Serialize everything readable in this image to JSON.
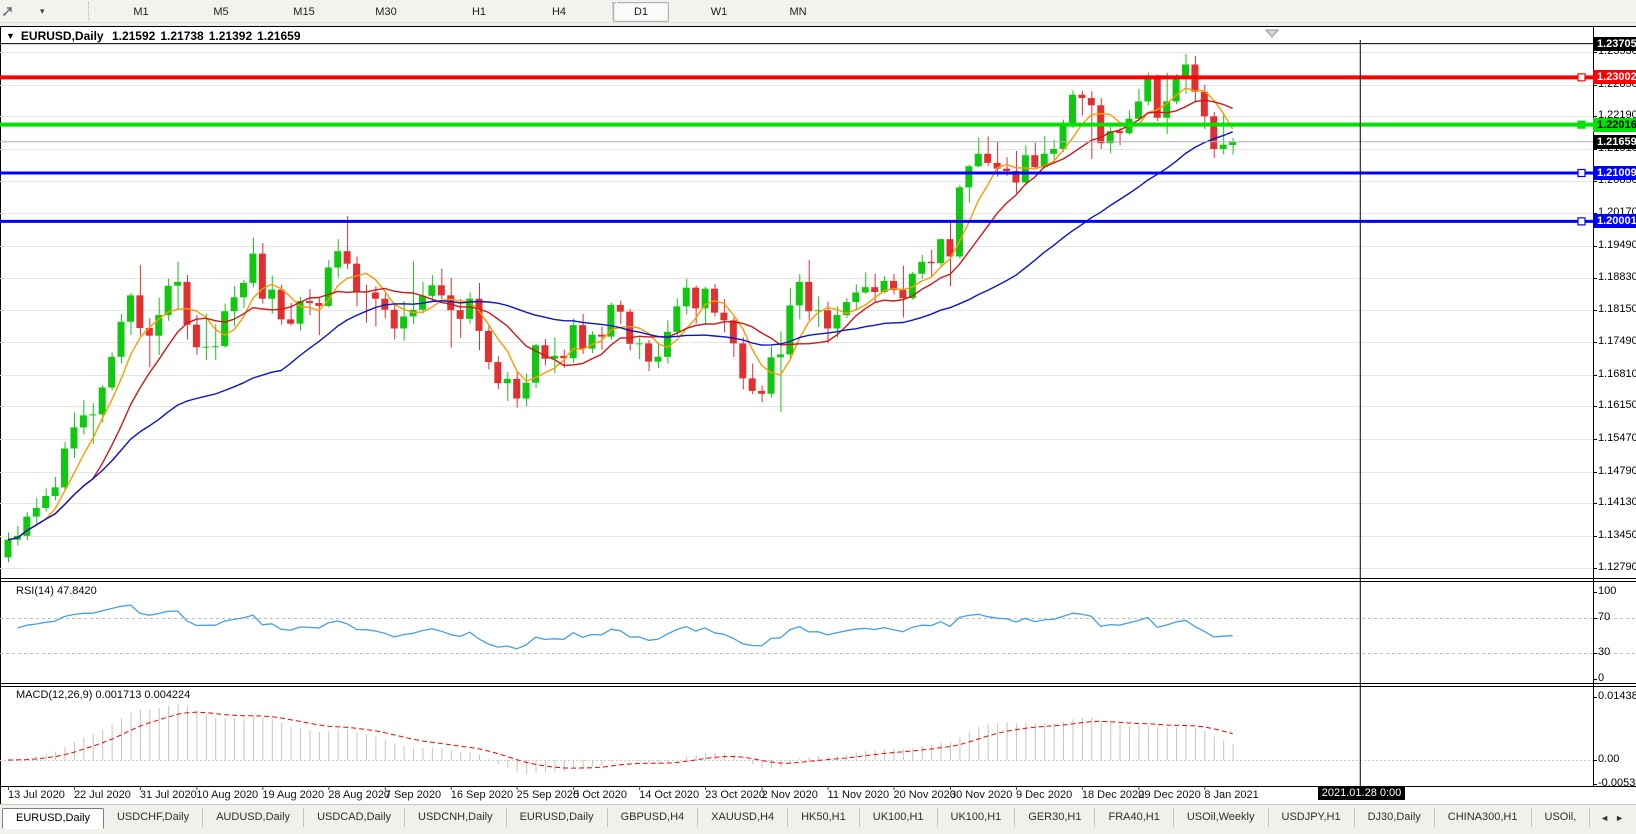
{
  "toolbar": {
    "timeframes": [
      "M1",
      "M5",
      "M15",
      "M30",
      "H1",
      "H4",
      "D1",
      "W1",
      "MN"
    ],
    "active_timeframe": "D1",
    "cursor_icon": "crosshair-cursor",
    "dropdown_caret": "▾"
  },
  "title": {
    "collapse_icon": "▼",
    "symbol": "EURUSD,Daily",
    "open": "1.21592",
    "high": "1.21738",
    "low": "1.21392",
    "close": "1.21659"
  },
  "price_axis": {
    "ticks": [
      "1.23530",
      "1.22850",
      "1.22190",
      "1.21510",
      "1.20850",
      "1.20170",
      "1.19490",
      "1.18830",
      "1.18150",
      "1.17490",
      "1.16810",
      "1.16150",
      "1.15470",
      "1.14790",
      "1.14130",
      "1.13450",
      "1.12790"
    ]
  },
  "current_price": {
    "value": 1.21659,
    "label": "1.21659",
    "bg": "#000000",
    "fg": "#ffffff"
  },
  "hlines": [
    {
      "price": 1.23705,
      "label": "1.23705",
      "color": "#000000",
      "width": 1,
      "text": "#ffffff",
      "handle": false
    },
    {
      "price": 1.23002,
      "label": "1.23002",
      "color": "#ff0000",
      "width": 4,
      "text": "#ffffff",
      "handle": true
    },
    {
      "price": 1.22016,
      "label": "1.22016",
      "color": "#00e400",
      "width": 4,
      "text": "#000000",
      "handle": true
    },
    {
      "price": 1.21009,
      "label": "1.21009",
      "color": "#0000ff",
      "width": 3,
      "text": "#ffffff",
      "handle": true
    },
    {
      "price": 1.20001,
      "label": "1.20001",
      "color": "#0000ff",
      "width": 3,
      "text": "#ffffff",
      "handle": true
    }
  ],
  "vline": {
    "label": "2021.01.28 0:00",
    "slot": 143.5
  },
  "rsi": {
    "label": "RSI(14) 47.8420",
    "period": 14,
    "value": 47.842,
    "color": "#44a0e8",
    "ticks": [
      {
        "v": 100,
        "t": "100",
        "dashed": false
      },
      {
        "v": 70,
        "t": "70",
        "dashed": true
      },
      {
        "v": 30,
        "t": "30",
        "dashed": true
      },
      {
        "v": 0,
        "t": "0",
        "dashed": false
      }
    ]
  },
  "macd": {
    "label": "MACD(12,26,9) 0.001713 0.004224",
    "fast": 12,
    "slow": 26,
    "signal": 9,
    "value_main": 0.001713,
    "value_signal": 0.004224,
    "hist_color": "#c4c4c4",
    "signal_color": "#ff0000",
    "ticks": [
      {
        "v": 0.014384,
        "t": "0.014384"
      },
      {
        "v": 0.0,
        "t": "0.00"
      },
      {
        "v": -0.005396,
        "t": "-0.005396"
      }
    ]
  },
  "dates": [
    {
      "label": "13 Jul 2020",
      "bar": 0
    },
    {
      "label": "22 Jul 2020",
      "bar": 7
    },
    {
      "label": "31 Jul 2020",
      "bar": 14
    },
    {
      "label": "10 Aug 2020",
      "bar": 20
    },
    {
      "label": "19 Aug 2020",
      "bar": 27
    },
    {
      "label": "28 Aug 2020",
      "bar": 34
    },
    {
      "label": "7 Sep 2020",
      "bar": 40
    },
    {
      "label": "16 Sep 2020",
      "bar": 47
    },
    {
      "label": "25 Sep 2020",
      "bar": 54
    },
    {
      "label": "5 Oct 2020",
      "bar": 60
    },
    {
      "label": "14 Oct 2020",
      "bar": 67
    },
    {
      "label": "23 Oct 2020",
      "bar": 74
    },
    {
      "label": "2 Nov 2020",
      "bar": 80
    },
    {
      "label": "11 Nov 2020",
      "bar": 87
    },
    {
      "label": "20 Nov 2020",
      "bar": 94
    },
    {
      "label": "30 Nov 2020",
      "bar": 100
    },
    {
      "label": "9 Dec 2020",
      "bar": 107
    },
    {
      "label": "18 Dec 2020",
      "bar": 114
    },
    {
      "label": "29 Dec 2020",
      "bar": 120
    },
    {
      "label": "8 Jan 2021",
      "bar": 127
    }
  ],
  "tabs": {
    "items": [
      "EURUSD,Daily",
      "USDCHF,Daily",
      "AUDUSD,Daily",
      "USDCAD,Daily",
      "USDCNH,Daily",
      "EURUSD,Daily",
      "GBPUSD,H4",
      "XAUUSD,H4",
      "HK50,H1",
      "UK100,H1",
      "UK100,H1",
      "GER30,H1",
      "FRA40,H1",
      "USOil,Weekly",
      "USDJPY,H1",
      "DJ30,Daily",
      "CHINA300,H1",
      "USOil,"
    ],
    "active": 0,
    "scroll_left": "◄",
    "scroll_right": "►"
  },
  "chart_data": {
    "type": "candlestick",
    "symbol": "EURUSD",
    "timeframe": "Daily",
    "bull_color": "#10c810",
    "bear_color": "#e03030",
    "grid_color": "#e6e6e6",
    "current_line_color": "#b0b0b0",
    "ylim": [
      1.1279,
      1.2353
    ],
    "ma_overlays": [
      {
        "period": 5,
        "method": "sma",
        "color": "#ff9900"
      },
      {
        "period": 10,
        "method": "sma",
        "color": "#d01818"
      },
      {
        "period": 30,
        "method": "sma",
        "color": "#0a14c8"
      }
    ],
    "candles": [
      [
        1.13,
        1.1352,
        1.129,
        1.1337
      ],
      [
        1.1337,
        1.1366,
        1.1325,
        1.1345
      ],
      [
        1.1345,
        1.1394,
        1.1336,
        1.1385
      ],
      [
        1.1385,
        1.1424,
        1.1371,
        1.1403
      ],
      [
        1.1403,
        1.1444,
        1.1396,
        1.1428
      ],
      [
        1.1428,
        1.1468,
        1.1419,
        1.1446
      ],
      [
        1.1446,
        1.154,
        1.1441,
        1.1527
      ],
      [
        1.1527,
        1.1602,
        1.1507,
        1.1571
      ],
      [
        1.1571,
        1.1628,
        1.1556,
        1.1596
      ],
      [
        1.1596,
        1.1621,
        1.1536,
        1.1598
      ],
      [
        1.1598,
        1.1659,
        1.1581,
        1.1654
      ],
      [
        1.1654,
        1.1727,
        1.1648,
        1.1718
      ],
      [
        1.1718,
        1.1807,
        1.1704,
        1.1791
      ],
      [
        1.1791,
        1.1851,
        1.1763,
        1.1846
      ],
      [
        1.1846,
        1.1909,
        1.1762,
        1.1778
      ],
      [
        1.1778,
        1.1798,
        1.1696,
        1.1762
      ],
      [
        1.1762,
        1.1841,
        1.1722,
        1.1805
      ],
      [
        1.1805,
        1.1881,
        1.1793,
        1.1866
      ],
      [
        1.1866,
        1.1916,
        1.1818,
        1.1874
      ],
      [
        1.1874,
        1.1888,
        1.1754,
        1.1785
      ],
      [
        1.1785,
        1.1805,
        1.1722,
        1.1738
      ],
      [
        1.1738,
        1.1808,
        1.1711,
        1.1739
      ],
      [
        1.1739,
        1.1786,
        1.1711,
        1.174
      ],
      [
        1.174,
        1.1829,
        1.1737,
        1.1813
      ],
      [
        1.1813,
        1.1865,
        1.1782,
        1.1842
      ],
      [
        1.1842,
        1.1878,
        1.182,
        1.1872
      ],
      [
        1.1872,
        1.1966,
        1.1863,
        1.1933
      ],
      [
        1.1933,
        1.1955,
        1.1829,
        1.1839
      ],
      [
        1.1839,
        1.1887,
        1.1808,
        1.1858
      ],
      [
        1.1858,
        1.1868,
        1.1785,
        1.1796
      ],
      [
        1.1796,
        1.183,
        1.1783,
        1.1787
      ],
      [
        1.1787,
        1.1843,
        1.1773,
        1.1834
      ],
      [
        1.1834,
        1.1859,
        1.1805,
        1.183
      ],
      [
        1.183,
        1.1842,
        1.1763,
        1.1824
      ],
      [
        1.1824,
        1.192,
        1.1821,
        1.1904
      ],
      [
        1.1904,
        1.1963,
        1.1883,
        1.1938
      ],
      [
        1.1938,
        1.2011,
        1.1901,
        1.1912
      ],
      [
        1.1912,
        1.1927,
        1.1823,
        1.1854
      ],
      [
        1.1854,
        1.1868,
        1.1789,
        1.1852
      ],
      [
        1.1852,
        1.1865,
        1.1781,
        1.1839
      ],
      [
        1.1839,
        1.185,
        1.1798,
        1.1816
      ],
      [
        1.1816,
        1.1828,
        1.1754,
        1.1777
      ],
      [
        1.1777,
        1.1834,
        1.1752,
        1.1802
      ],
      [
        1.1802,
        1.1917,
        1.1786,
        1.1816
      ],
      [
        1.1816,
        1.1874,
        1.1808,
        1.1845
      ],
      [
        1.1845,
        1.1888,
        1.1835,
        1.1867
      ],
      [
        1.1867,
        1.1901,
        1.1838,
        1.1846
      ],
      [
        1.1846,
        1.1882,
        1.1737,
        1.1815
      ],
      [
        1.1815,
        1.1838,
        1.1758,
        1.1797
      ],
      [
        1.1797,
        1.1852,
        1.1787,
        1.1839
      ],
      [
        1.1839,
        1.1872,
        1.1732,
        1.1772
      ],
      [
        1.1772,
        1.1784,
        1.1692,
        1.1707
      ],
      [
        1.1707,
        1.1719,
        1.1651,
        1.1663
      ],
      [
        1.1663,
        1.1686,
        1.1626,
        1.1672
      ],
      [
        1.1672,
        1.1688,
        1.1612,
        1.1631
      ],
      [
        1.1631,
        1.1683,
        1.1615,
        1.1664
      ],
      [
        1.1664,
        1.1745,
        1.1653,
        1.1742
      ],
      [
        1.1742,
        1.1755,
        1.17,
        1.1714
      ],
      [
        1.1714,
        1.1758,
        1.1684,
        1.172
      ],
      [
        1.172,
        1.1733,
        1.1695,
        1.1715
      ],
      [
        1.1715,
        1.1798,
        1.1705,
        1.1784
      ],
      [
        1.1784,
        1.1807,
        1.1724,
        1.1735
      ],
      [
        1.1735,
        1.1771,
        1.1726,
        1.1764
      ],
      [
        1.1764,
        1.1781,
        1.1733,
        1.176
      ],
      [
        1.176,
        1.1831,
        1.1754,
        1.1826
      ],
      [
        1.1826,
        1.1835,
        1.1786,
        1.1812
      ],
      [
        1.1812,
        1.1818,
        1.1731,
        1.1745
      ],
      [
        1.1745,
        1.1758,
        1.1713,
        1.1746
      ],
      [
        1.1746,
        1.1753,
        1.1688,
        1.1708
      ],
      [
        1.1708,
        1.1747,
        1.1694,
        1.1718
      ],
      [
        1.1718,
        1.1794,
        1.1704,
        1.177
      ],
      [
        1.177,
        1.184,
        1.1762,
        1.1823
      ],
      [
        1.1823,
        1.1881,
        1.1806,
        1.1862
      ],
      [
        1.1862,
        1.1866,
        1.1787,
        1.1819
      ],
      [
        1.1819,
        1.1864,
        1.1786,
        1.186
      ],
      [
        1.186,
        1.187,
        1.1802,
        1.181
      ],
      [
        1.181,
        1.1838,
        1.1769,
        1.1794
      ],
      [
        1.1794,
        1.18,
        1.1718,
        1.1746
      ],
      [
        1.1746,
        1.1759,
        1.165,
        1.1673
      ],
      [
        1.1673,
        1.1704,
        1.164,
        1.1647
      ],
      [
        1.1647,
        1.1658,
        1.1623,
        1.1641
      ],
      [
        1.1641,
        1.174,
        1.1633,
        1.1717
      ],
      [
        1.1717,
        1.1771,
        1.1603,
        1.1723
      ],
      [
        1.1723,
        1.1861,
        1.1716,
        1.1825
      ],
      [
        1.1825,
        1.189,
        1.1796,
        1.1874
      ],
      [
        1.1874,
        1.192,
        1.1795,
        1.1813
      ],
      [
        1.1813,
        1.1844,
        1.178,
        1.1815
      ],
      [
        1.1815,
        1.1833,
        1.1746,
        1.1777
      ],
      [
        1.1777,
        1.1823,
        1.1758,
        1.1805
      ],
      [
        1.1805,
        1.184,
        1.1799,
        1.1832
      ],
      [
        1.1832,
        1.1869,
        1.1815,
        1.1852
      ],
      [
        1.1852,
        1.1894,
        1.1849,
        1.1863
      ],
      [
        1.1863,
        1.1891,
        1.1833,
        1.1853
      ],
      [
        1.1853,
        1.1886,
        1.185,
        1.1876
      ],
      [
        1.1876,
        1.1891,
        1.1848,
        1.1857
      ],
      [
        1.1857,
        1.1908,
        1.18,
        1.184
      ],
      [
        1.184,
        1.1895,
        1.1837,
        1.1891
      ],
      [
        1.1891,
        1.193,
        1.1881,
        1.1916
      ],
      [
        1.1916,
        1.1941,
        1.1886,
        1.1913
      ],
      [
        1.1913,
        1.1964,
        1.1906,
        1.1963
      ],
      [
        1.1963,
        1.2003,
        1.1865,
        1.1927
      ],
      [
        1.1927,
        1.2076,
        1.1923,
        1.2071
      ],
      [
        1.2071,
        1.2118,
        1.2039,
        1.2115
      ],
      [
        1.2115,
        1.2175,
        1.2113,
        1.2141
      ],
      [
        1.2141,
        1.2177,
        1.2115,
        1.2122
      ],
      [
        1.2122,
        1.2166,
        1.2093,
        1.211
      ],
      [
        1.211,
        1.2134,
        1.2095,
        1.2105
      ],
      [
        1.2105,
        1.2147,
        1.2059,
        1.2081
      ],
      [
        1.2081,
        1.2159,
        1.2076,
        1.2138
      ],
      [
        1.2138,
        1.2164,
        1.2109,
        1.2113
      ],
      [
        1.2113,
        1.2178,
        1.211,
        1.2141
      ],
      [
        1.2141,
        1.217,
        1.2123,
        1.2151
      ],
      [
        1.2151,
        1.2212,
        1.2145,
        1.2198
      ],
      [
        1.2198,
        1.2273,
        1.2195,
        1.2264
      ],
      [
        1.2264,
        1.2272,
        1.2221,
        1.2257
      ],
      [
        1.2257,
        1.2271,
        1.213,
        1.2242
      ],
      [
        1.2242,
        1.2257,
        1.2151,
        1.2163
      ],
      [
        1.2163,
        1.2197,
        1.2142,
        1.2188
      ],
      [
        1.2188,
        1.2195,
        1.2159,
        1.2184
      ],
      [
        1.2184,
        1.2231,
        1.2181,
        1.2214
      ],
      [
        1.2214,
        1.2276,
        1.2209,
        1.225
      ],
      [
        1.225,
        1.231,
        1.2242,
        1.2299
      ],
      [
        1.2299,
        1.2306,
        1.2209,
        1.2216
      ],
      [
        1.2216,
        1.231,
        1.2182,
        1.225
      ],
      [
        1.225,
        1.2307,
        1.2244,
        1.2297
      ],
      [
        1.2297,
        1.2349,
        1.2266,
        1.2327
      ],
      [
        1.2327,
        1.2345,
        1.2248,
        1.227
      ],
      [
        1.227,
        1.2285,
        1.2193,
        1.2219
      ],
      [
        1.2219,
        1.2228,
        1.2132,
        1.2151
      ],
      [
        1.2151,
        1.2224,
        1.214,
        1.216
      ],
      [
        1.21592,
        1.21738,
        1.21392,
        1.21659
      ]
    ]
  }
}
